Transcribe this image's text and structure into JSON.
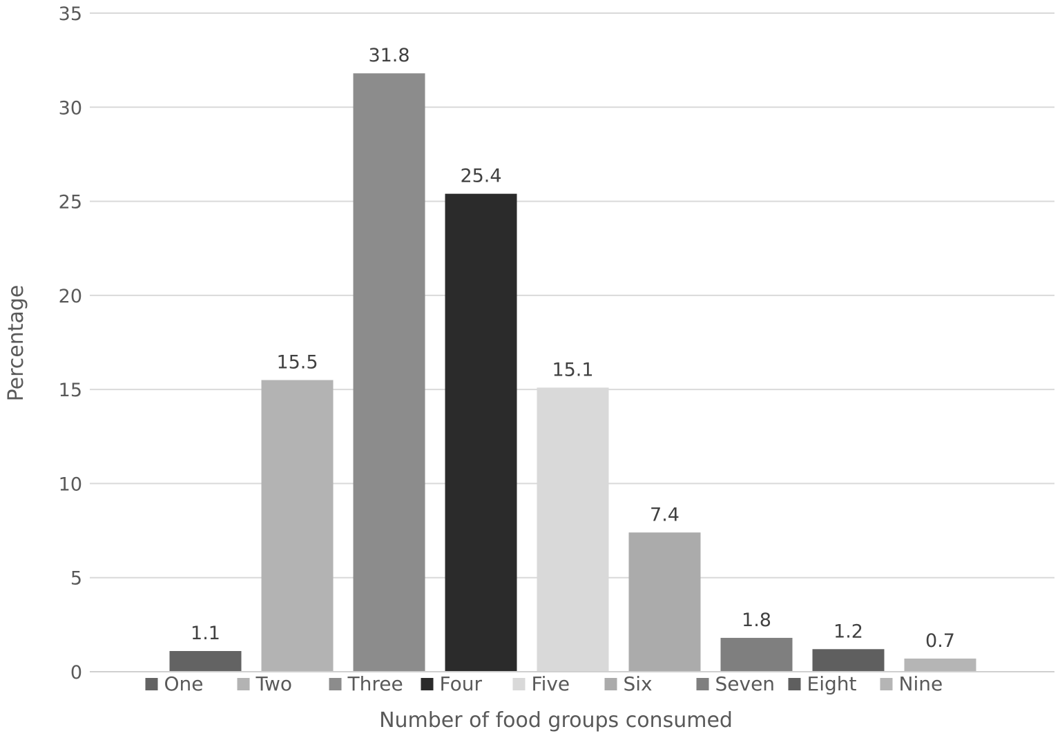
{
  "chart_data": {
    "type": "bar",
    "title": "",
    "xlabel": "Number of food groups consumed",
    "ylabel": "Percentage",
    "ylim": [
      0,
      35
    ],
    "yticks": [
      0,
      5,
      10,
      15,
      20,
      25,
      30,
      35
    ],
    "grid": true,
    "legend_position": "bottom",
    "categories": [
      "One",
      "Two",
      "Three",
      "Four",
      "Five",
      "Six",
      "Seven",
      "Eight",
      "Nine"
    ],
    "values": [
      1.1,
      15.5,
      31.8,
      25.4,
      15.1,
      7.4,
      1.8,
      1.2,
      0.7
    ],
    "value_labels": [
      "1.1",
      "15.5",
      "31.8",
      "25.4",
      "15.1",
      "7.4",
      "1.8",
      "1.2",
      "0.7"
    ],
    "colors": [
      "#636363",
      "#b3b3b3",
      "#8c8c8c",
      "#2b2b2b",
      "#d9d9d9",
      "#ababab",
      "#7f7f7f",
      "#5f5f5f",
      "#b5b5b5"
    ]
  }
}
